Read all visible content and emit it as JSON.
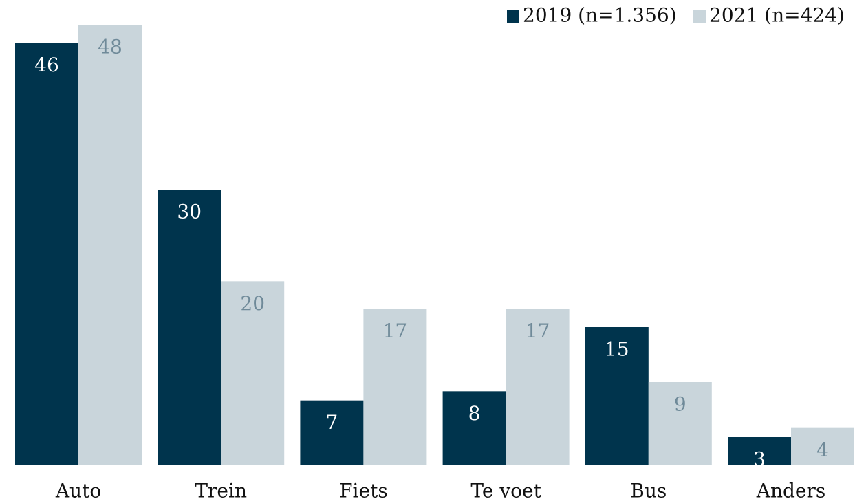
{
  "chart_data": {
    "type": "bar",
    "categories": [
      "Auto",
      "Trein",
      "Fiets",
      "Te voet",
      "Bus",
      "Anders"
    ],
    "series": [
      {
        "name": "2019 (n=1.356)",
        "color": "#00344d",
        "values": [
          46,
          30,
          7,
          8,
          15,
          3
        ]
      },
      {
        "name": "2021 (n=424)",
        "color": "#c9d5db",
        "values": [
          48,
          20,
          17,
          17,
          9,
          4
        ]
      }
    ],
    "legend": "top-right"
  }
}
